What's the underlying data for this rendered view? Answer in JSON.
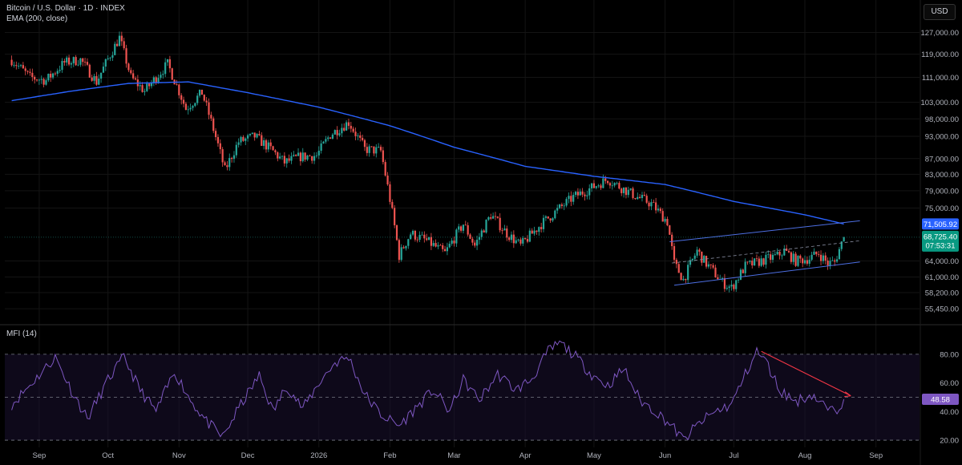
{
  "header": {
    "symbol": "Bitcoin / U.S. Dollar · 1D · INDEX",
    "indicator": "EMA (200, close)",
    "currency": "USD"
  },
  "mfi_panel": {
    "label": "MFI (14)"
  },
  "colors": {
    "up": "#26a69a",
    "down": "#ef5350",
    "ema": "#2962ff",
    "channel": "#4d6fe3",
    "mfi": "#7e57c2",
    "mfi_band": "#1a1030",
    "divergence": "#f23645"
  },
  "chart_data": [
    {
      "type": "candlestick",
      "scale": "log",
      "y_ticks": [
        "127,000.00",
        "119,000.00",
        "111,000.00",
        "103,000.00",
        "98,000.00",
        "93,000.00",
        "87,000.00",
        "83,000.00",
        "79,000.00",
        "75,000.00",
        "64,000.00",
        "61,000.00",
        "58,200.00",
        "55,450.00"
      ],
      "x_ticks": [
        "Sep",
        "Oct",
        "Nov",
        "Dec",
        "2026",
        "Feb",
        "Mar",
        "Apr",
        "May",
        "Jun",
        "Jul",
        "Aug",
        "Sep"
      ],
      "last_price": "68,725.40",
      "countdown": "07:53:31",
      "ema_value": "71,505.92",
      "price_path": [
        [
          "2025-08-20",
          117000
        ],
        [
          "2025-08-28",
          111000
        ],
        [
          "2025-09-04",
          110000
        ],
        [
          "2025-09-12",
          116000
        ],
        [
          "2025-09-19",
          117000
        ],
        [
          "2025-09-26",
          109500
        ],
        [
          "2025-10-06",
          125000
        ],
        [
          "2025-10-11",
          111000
        ],
        [
          "2025-10-17",
          106500
        ],
        [
          "2025-10-27",
          115500
        ],
        [
          "2025-11-04",
          101000
        ],
        [
          "2025-11-11",
          106000
        ],
        [
          "2025-11-21",
          84000
        ],
        [
          "2025-11-27",
          91500
        ],
        [
          "2025-12-04",
          93000
        ],
        [
          "2025-12-11",
          89500
        ],
        [
          "2025-12-17",
          86000
        ],
        [
          "2025-12-24",
          87500
        ],
        [
          "2025-12-31",
          87800
        ],
        [
          "2026-01-06",
          93500
        ],
        [
          "2026-01-14",
          97000
        ],
        [
          "2026-01-21",
          89500
        ],
        [
          "2026-01-28",
          89000
        ],
        [
          "2026-02-05",
          65000
        ],
        [
          "2026-02-10",
          69500
        ],
        [
          "2026-02-17",
          68000
        ],
        [
          "2026-02-25",
          65500
        ],
        [
          "2026-03-05",
          71500
        ],
        [
          "2026-03-10",
          67000
        ],
        [
          "2026-03-17",
          73500
        ],
        [
          "2026-03-24",
          69500
        ],
        [
          "2026-03-30",
          67000
        ],
        [
          "2026-04-08",
          71500
        ],
        [
          "2026-04-15",
          74500
        ],
        [
          "2026-04-22",
          77500
        ],
        [
          "2026-05-01",
          80000
        ],
        [
          "2026-05-07",
          81800
        ],
        [
          "2026-05-12",
          80000
        ],
        [
          "2026-05-20",
          77500
        ],
        [
          "2026-05-26",
          76000
        ],
        [
          "2026-06-02",
          72000
        ],
        [
          "2026-06-05",
          63500
        ],
        [
          "2026-06-09",
          60500
        ],
        [
          "2026-06-15",
          66000
        ],
        [
          "2026-06-18",
          64000
        ],
        [
          "2026-06-23",
          61500
        ],
        [
          "2026-06-26",
          60000
        ],
        [
          "2026-06-30",
          59000
        ],
        [
          "2026-07-06",
          63000
        ],
        [
          "2026-07-13",
          64000
        ],
        [
          "2026-07-20",
          65000
        ],
        [
          "2026-07-23",
          66000
        ],
        [
          "2026-07-28",
          64000
        ],
        [
          "2026-08-03",
          64500
        ],
        [
          "2026-08-07",
          65500
        ],
        [
          "2026-08-11",
          63500
        ],
        [
          "2026-08-14",
          63800
        ],
        [
          "2026-08-18",
          68725
        ]
      ],
      "ema_path": [
        [
          "2025-08-20",
          103500
        ],
        [
          "2025-09-15",
          106500
        ],
        [
          "2025-10-10",
          109000
        ],
        [
          "2025-11-05",
          109500
        ],
        [
          "2025-12-01",
          106000
        ],
        [
          "2026-01-01",
          101500
        ],
        [
          "2026-02-01",
          96000
        ],
        [
          "2026-03-01",
          90000
        ],
        [
          "2026-04-01",
          85000
        ],
        [
          "2026-05-01",
          82500
        ],
        [
          "2026-06-01",
          80500
        ],
        [
          "2026-07-01",
          76500
        ],
        [
          "2026-08-01",
          73500
        ],
        [
          "2026-08-18",
          71506
        ]
      ]
    },
    {
      "type": "line",
      "y_ticks": [
        "80.00",
        "60.00",
        "40.00",
        "20.00"
      ],
      "y_range": [
        15,
        90
      ],
      "levels": [
        80,
        50,
        20
      ],
      "last_value": "48.58",
      "mfi_path": [
        [
          "2025-08-20",
          45
        ],
        [
          "2025-08-30",
          62
        ],
        [
          "2025-09-08",
          78
        ],
        [
          "2025-09-15",
          55
        ],
        [
          "2025-09-22",
          35
        ],
        [
          "2025-10-01",
          62
        ],
        [
          "2025-10-08",
          78
        ],
        [
          "2025-10-15",
          55
        ],
        [
          "2025-10-22",
          40
        ],
        [
          "2025-10-30",
          68
        ],
        [
          "2025-11-06",
          48
        ],
        [
          "2025-11-13",
          33
        ],
        [
          "2025-11-20",
          22
        ],
        [
          "2025-11-28",
          45
        ],
        [
          "2025-12-06",
          65
        ],
        [
          "2025-12-12",
          40
        ],
        [
          "2025-12-18",
          58
        ],
        [
          "2025-12-25",
          42
        ],
        [
          "2026-01-01",
          60
        ],
        [
          "2026-01-08",
          74
        ],
        [
          "2026-01-14",
          78
        ],
        [
          "2026-01-21",
          52
        ],
        [
          "2026-01-28",
          38
        ],
        [
          "2026-02-05",
          30
        ],
        [
          "2026-02-12",
          42
        ],
        [
          "2026-02-20",
          55
        ],
        [
          "2026-02-27",
          40
        ],
        [
          "2026-03-05",
          62
        ],
        [
          "2026-03-12",
          48
        ],
        [
          "2026-03-20",
          66
        ],
        [
          "2026-03-28",
          55
        ],
        [
          "2026-04-04",
          63
        ],
        [
          "2026-04-11",
          82
        ],
        [
          "2026-04-16",
          88
        ],
        [
          "2026-04-22",
          80
        ],
        [
          "2026-04-30",
          66
        ],
        [
          "2026-05-07",
          58
        ],
        [
          "2026-05-14",
          70
        ],
        [
          "2026-05-21",
          48
        ],
        [
          "2026-05-28",
          40
        ],
        [
          "2026-06-04",
          30
        ],
        [
          "2026-06-09",
          20
        ],
        [
          "2026-06-16",
          32
        ],
        [
          "2026-06-23",
          40
        ],
        [
          "2026-06-30",
          45
        ],
        [
          "2026-07-06",
          66
        ],
        [
          "2026-07-11",
          82
        ],
        [
          "2026-07-15",
          75
        ],
        [
          "2026-07-21",
          55
        ],
        [
          "2026-07-28",
          47
        ],
        [
          "2026-08-04",
          52
        ],
        [
          "2026-08-10",
          43
        ],
        [
          "2026-08-14",
          39
        ],
        [
          "2026-08-18",
          48.58
        ]
      ]
    }
  ],
  "drawings": {
    "channel_upper": [
      [
        "2026-06-03",
        67800
      ],
      [
        "2026-08-25",
        72200
      ]
    ],
    "channel_lower": [
      [
        "2026-06-05",
        59500
      ],
      [
        "2026-08-25",
        63800
      ]
    ],
    "channel_mid": [
      [
        "2026-06-04",
        63600
      ],
      [
        "2026-08-25",
        68000
      ]
    ],
    "mfi_divergence": [
      [
        "2026-07-13",
        82
      ],
      [
        "2026-08-21",
        51
      ]
    ]
  }
}
